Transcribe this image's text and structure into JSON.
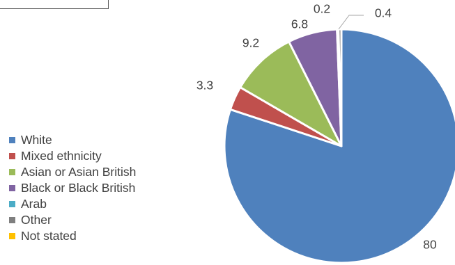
{
  "chart_data": {
    "type": "pie",
    "categories": [
      "White",
      "Mixed ethnicity",
      "Asian or Asian British",
      "Black or Black British",
      "Arab",
      "Other",
      "Not stated"
    ],
    "values": [
      80,
      3.3,
      9.2,
      6.8,
      0.2,
      0.4,
      0
    ],
    "data_labels": [
      "80",
      "3.3",
      "9.2",
      "6.8",
      "0.2",
      "0.4",
      ""
    ],
    "colors": [
      "#4f81bd",
      "#c0504d",
      "#9bbb59",
      "#8064a2",
      "#4bacc6",
      "#7f7f7f",
      "#ffc000"
    ],
    "start_angle_deg": 0,
    "direction": "clockwise",
    "legend_position": "left",
    "title": ""
  }
}
